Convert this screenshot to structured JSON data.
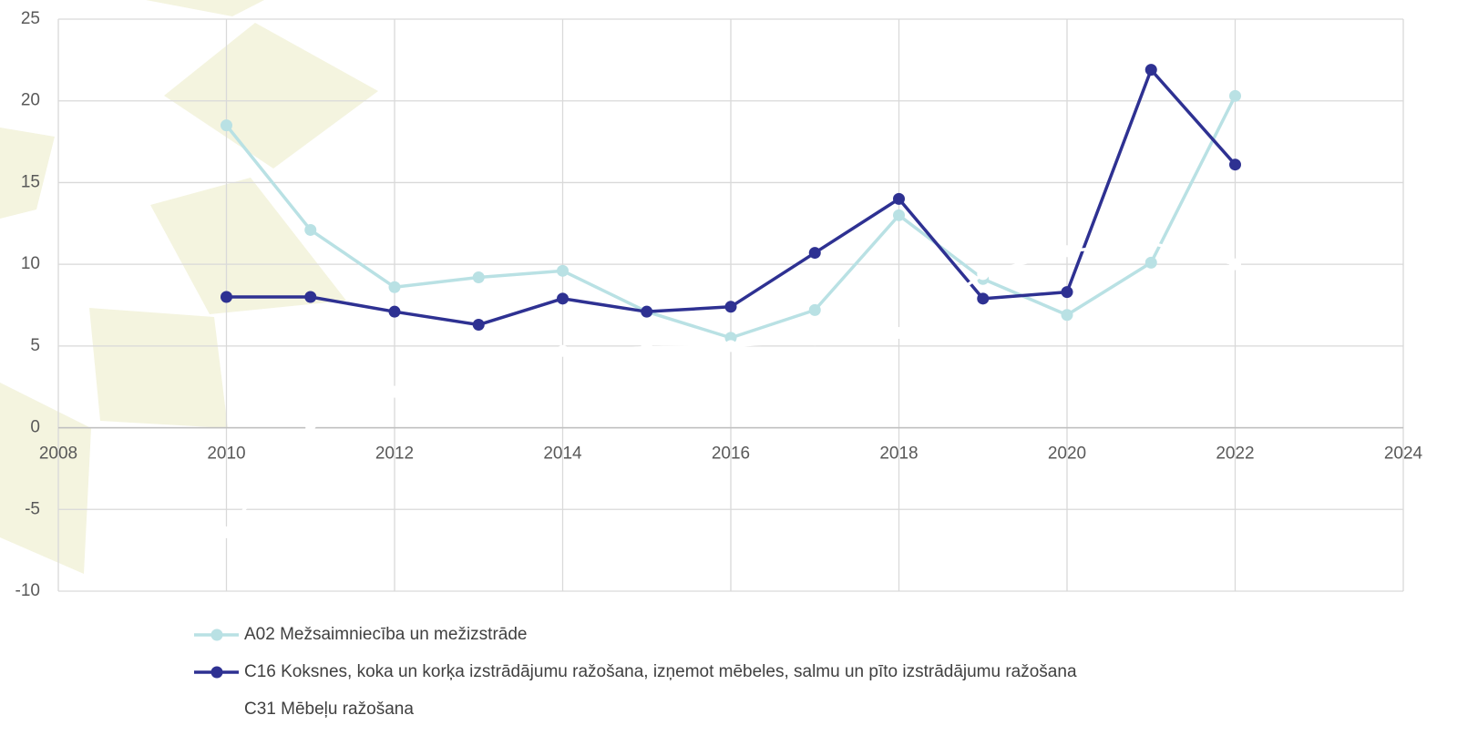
{
  "chart_data": {
    "type": "line",
    "x": [
      2010,
      2011,
      2012,
      2013,
      2014,
      2015,
      2016,
      2017,
      2018,
      2019,
      2020,
      2021,
      2022
    ],
    "series": [
      {
        "name": "A02 Mežsaimniecība un mežizstrāde",
        "color": "#b9e1e4",
        "values": [
          18.5,
          12.1,
          8.6,
          9.2,
          9.6,
          7.1,
          5.5,
          7.2,
          13.0,
          9.1,
          6.9,
          10.1,
          20.3
        ]
      },
      {
        "name": "C16 Koksnes, koka un korķa izstrādājumu ražošana, izņemot mēbeles, salmu un pīto izstrādājumu ražošana",
        "color": "#2e3192",
        "values": [
          8.0,
          8.0,
          7.1,
          6.3,
          7.9,
          7.1,
          7.4,
          10.7,
          14.0,
          7.9,
          8.3,
          21.9,
          16.1
        ]
      },
      {
        "name": "C31 Mēbeļu ražošana",
        "color": "#ffffff",
        "values": [
          -6.4,
          0.2,
          2.2,
          3.5,
          4.7,
          4.9,
          5.0,
          5.4,
          5.8,
          9.4,
          10.8,
          11.3,
          10.0
        ]
      }
    ],
    "xlim": [
      2008,
      2024
    ],
    "xticks": [
      2008,
      2010,
      2012,
      2014,
      2016,
      2018,
      2020,
      2022,
      2024
    ],
    "ylim": [
      -10,
      25
    ],
    "yticks": [
      -10,
      -5,
      0,
      5,
      10,
      15,
      20,
      25
    ],
    "grid": true
  }
}
